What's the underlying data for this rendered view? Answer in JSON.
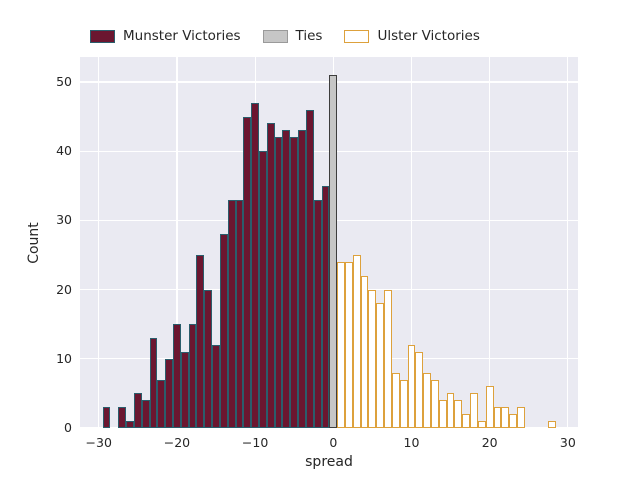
{
  "legend": {
    "items": [
      {
        "label": "Munster Victories",
        "fill": "#6b1630",
        "edge": "#2a5d6c"
      },
      {
        "label": "Ties",
        "fill": "#c6c6c6",
        "edge": "#9a9a9a"
      },
      {
        "label": "Ulster Victories",
        "fill": "#ffffff",
        "edge": "#dda13c"
      }
    ]
  },
  "chart_data": {
    "type": "bar",
    "title": "",
    "xlabel": "spread",
    "ylabel": "Count",
    "xlim": [
      -32.4,
      31.3
    ],
    "ylim": [
      0,
      53.6
    ],
    "grid": true,
    "legend_position": "top",
    "bin_width": 1,
    "x_ticks": [
      -30,
      -20,
      -10,
      0,
      10,
      20,
      30
    ],
    "x_tick_labels": [
      "−30",
      "−20",
      "−10",
      "0",
      "10",
      "20",
      "30"
    ],
    "y_ticks": [
      0,
      10,
      20,
      30,
      40,
      50
    ],
    "y_tick_labels": [
      "0",
      "10",
      "20",
      "30",
      "40",
      "50"
    ],
    "plot_bg": "#eaeaf2",
    "grid_color": "#ffffff",
    "series": [
      {
        "name": "Munster Victories",
        "fill": "#6b1630",
        "edge": "#2a5d6c",
        "x": [
          -29,
          -28,
          -27,
          -26,
          -25,
          -24,
          -23,
          -22,
          -21,
          -20,
          -19,
          -18,
          -17,
          -16,
          -15,
          -14,
          -13,
          -12,
          -11,
          -10,
          -9,
          -8,
          -7,
          -6,
          -5,
          -4,
          -3,
          -2,
          -1
        ],
        "counts": [
          3,
          0,
          3,
          1,
          5,
          4,
          13,
          7,
          10,
          15,
          11,
          15,
          25,
          20,
          12,
          28,
          33,
          33,
          45,
          47,
          40,
          44,
          42,
          43,
          42,
          43,
          46,
          33,
          35
        ]
      },
      {
        "name": "Ties",
        "fill": "#c6c6c6",
        "edge": "#3d3d3d",
        "x": [
          0
        ],
        "counts": [
          51
        ]
      },
      {
        "name": "Ulster Victories",
        "fill": "#ffffff",
        "edge": "#dda13c",
        "x": [
          1,
          2,
          3,
          4,
          5,
          6,
          7,
          8,
          9,
          10,
          11,
          12,
          13,
          14,
          15,
          16,
          17,
          18,
          19,
          20,
          21,
          22,
          23,
          24,
          25,
          26,
          27,
          28,
          29
        ],
        "counts": [
          24,
          24,
          25,
          22,
          20,
          18,
          20,
          8,
          7,
          12,
          11,
          8,
          7,
          4,
          5,
          4,
          2,
          5,
          1,
          6,
          3,
          3,
          2,
          3,
          0,
          0,
          0,
          1,
          0
        ]
      }
    ]
  }
}
